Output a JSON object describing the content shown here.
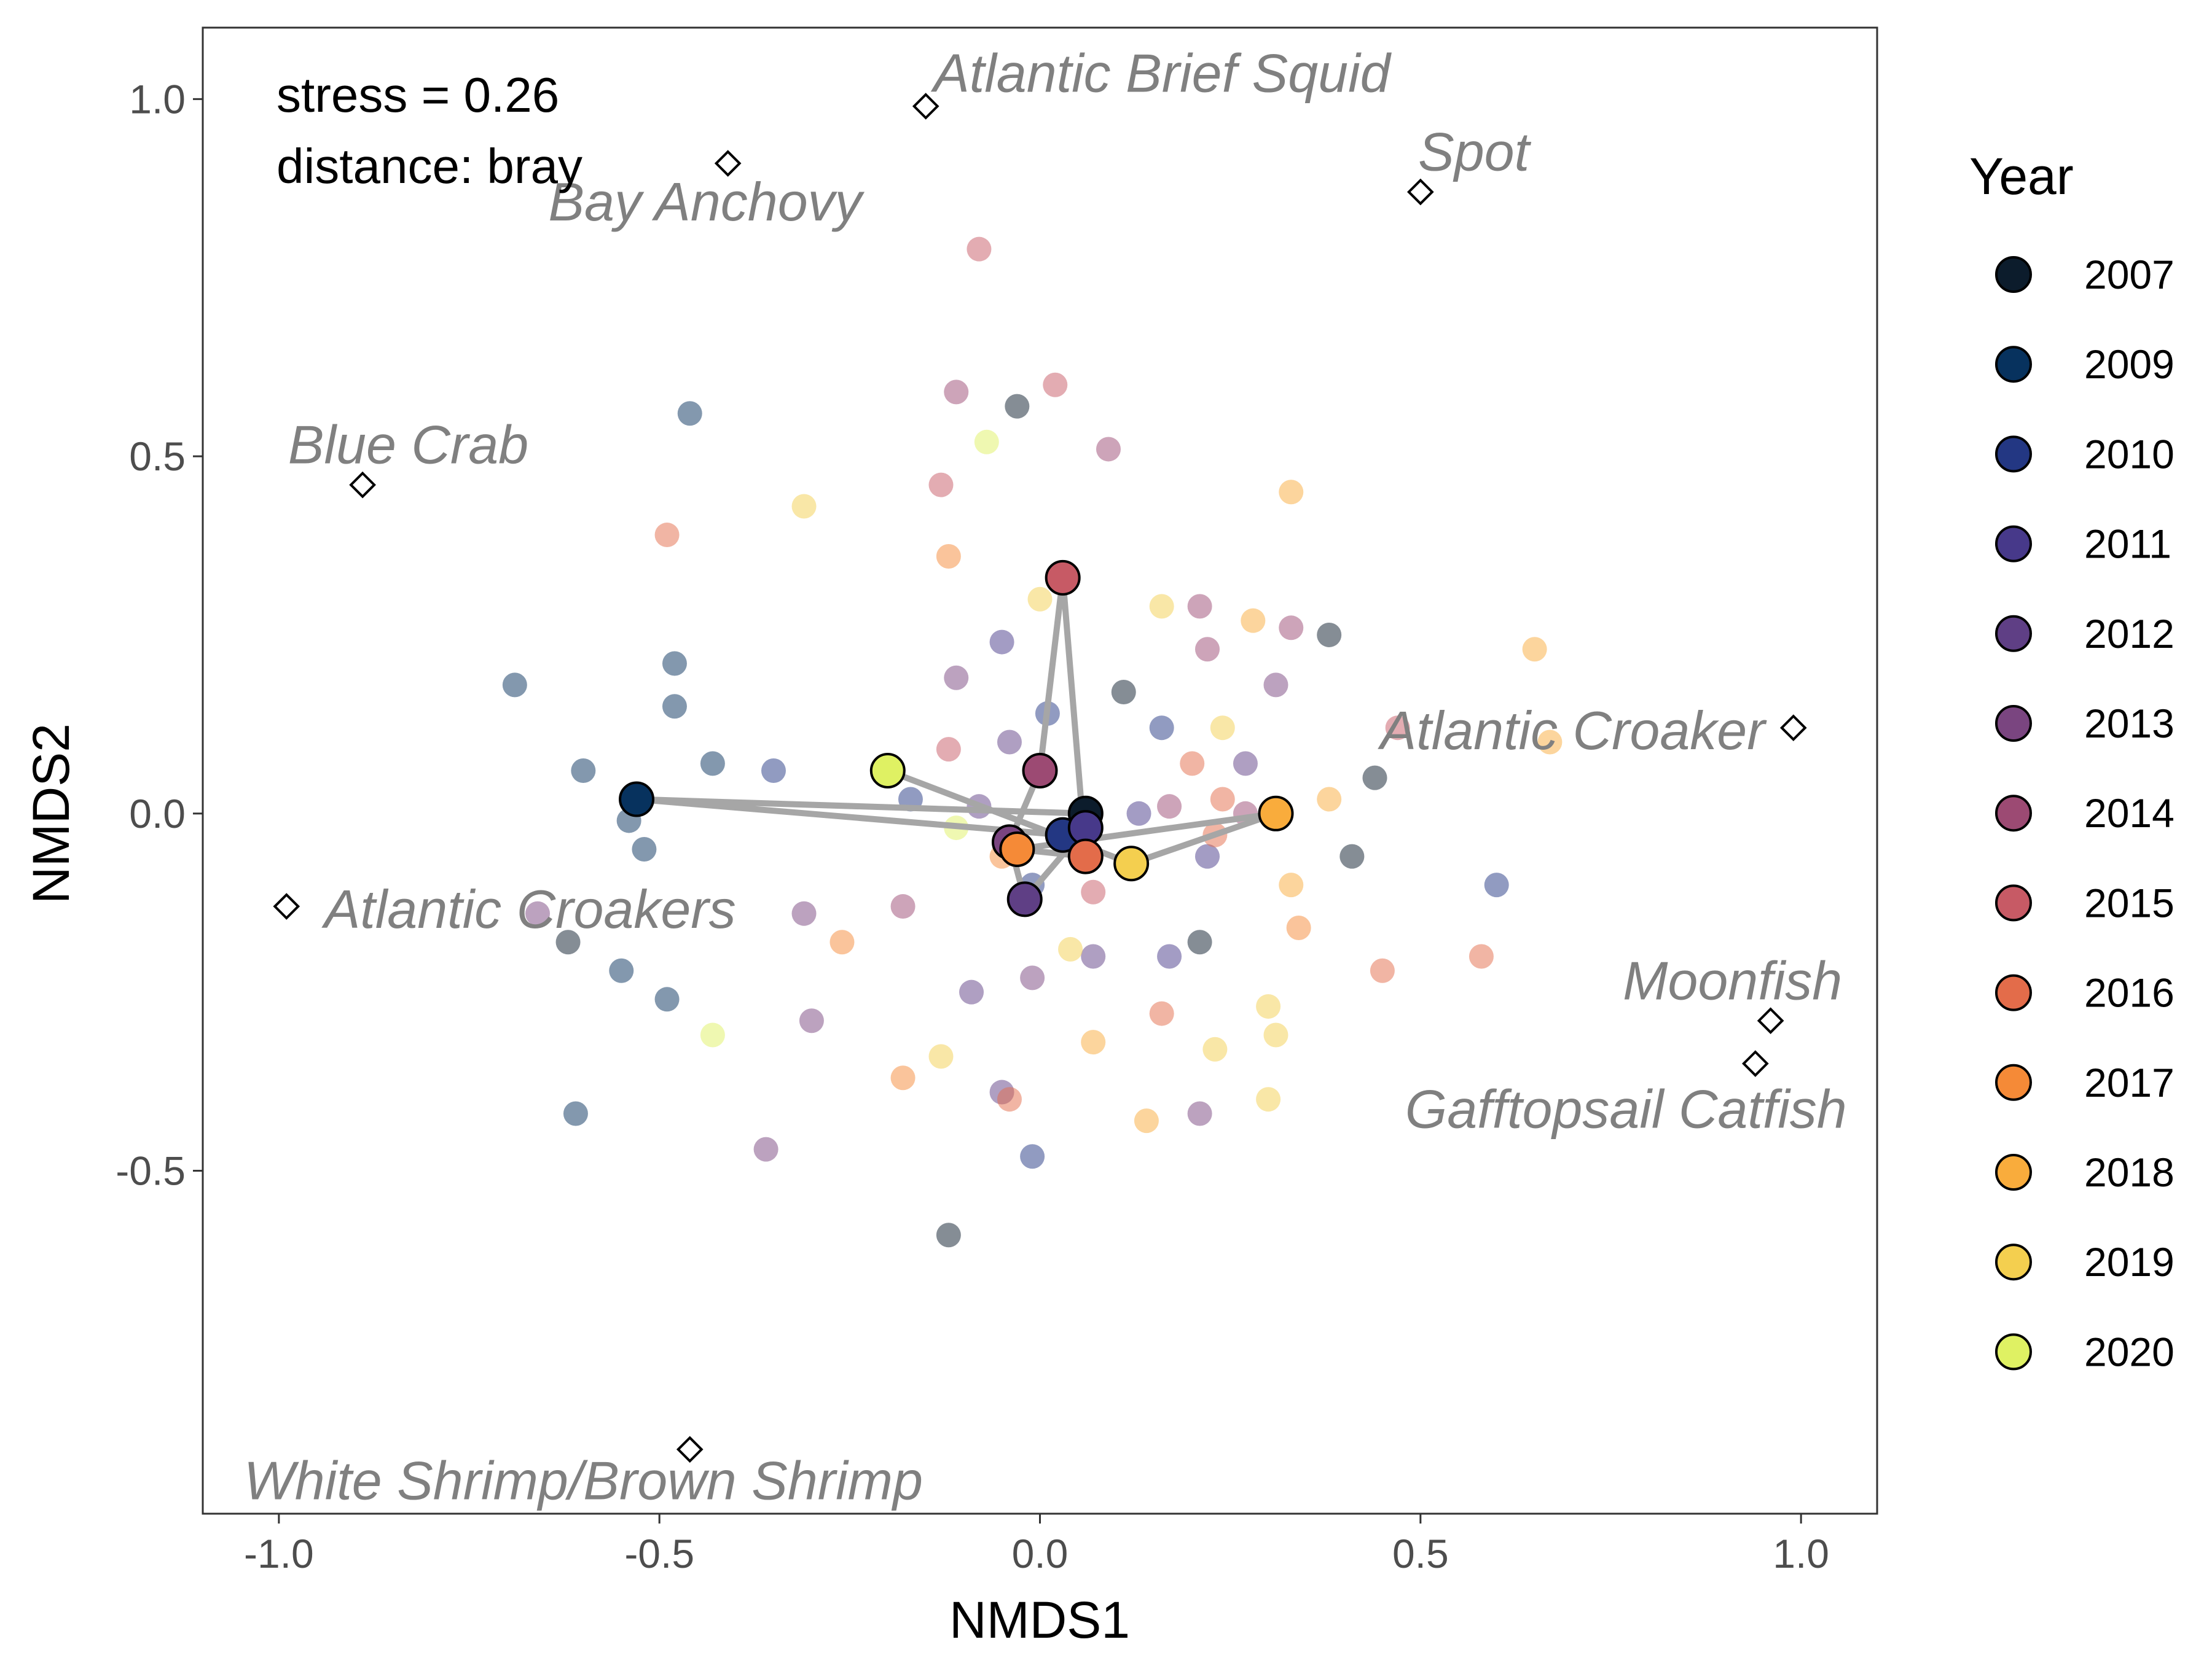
{
  "chart_data": {
    "type": "scatter",
    "xlabel": "NMDS1",
    "ylabel": "NMDS2",
    "xlim": [
      -1.1,
      1.1
    ],
    "ylim": [
      -0.98,
      1.1
    ],
    "x_ticks": [
      -1.0,
      -0.5,
      0.0,
      0.5,
      1.0
    ],
    "x_tick_labels": [
      "-1.0",
      "-0.5",
      "0.0",
      "0.5",
      "1.0"
    ],
    "y_ticks": [
      -0.5,
      0.0,
      0.5,
      1.0
    ],
    "y_tick_labels": [
      "-0.5",
      "0.0",
      "0.5",
      "1.0"
    ],
    "grid": false,
    "annotations": [
      "stress = 0.26",
      "distance: bray"
    ],
    "legend": {
      "title": "Year",
      "position": "right",
      "entries": [
        "2007",
        "2009",
        "2010",
        "2011",
        "2012",
        "2013",
        "2014",
        "2015",
        "2016",
        "2017",
        "2018",
        "2019",
        "2020"
      ]
    },
    "year_colors": {
      "2007": "#0c1c2c",
      "2009": "#07325e",
      "2010": "#233783",
      "2011": "#47398a",
      "2012": "#5f3f85",
      "2013": "#7a4580",
      "2014": "#9c4a73",
      "2015": "#c75a65",
      "2016": "#e36c4a",
      "2017": "#f58a37",
      "2018": "#f9ac3c",
      "2019": "#f4cf4f",
      "2020": "#dff163"
    },
    "sample_points": [
      {
        "year": "2007",
        "x": -0.03,
        "y": 0.57
      },
      {
        "year": "2007",
        "x": 0.11,
        "y": 0.17
      },
      {
        "year": "2007",
        "x": 0.38,
        "y": 0.25
      },
      {
        "year": "2007",
        "x": 0.44,
        "y": 0.05
      },
      {
        "year": "2007",
        "x": 0.41,
        "y": -0.06
      },
      {
        "year": "2007",
        "x": 0.21,
        "y": -0.18
      },
      {
        "year": "2007",
        "x": -0.12,
        "y": -0.59
      },
      {
        "year": "2007",
        "x": -0.62,
        "y": -0.18
      },
      {
        "year": "2009",
        "x": -0.46,
        "y": 0.56
      },
      {
        "year": "2009",
        "x": -0.69,
        "y": 0.18
      },
      {
        "year": "2009",
        "x": -0.48,
        "y": 0.21
      },
      {
        "year": "2009",
        "x": -0.48,
        "y": 0.15
      },
      {
        "year": "2009",
        "x": -0.6,
        "y": 0.06
      },
      {
        "year": "2009",
        "x": -0.43,
        "y": 0.07
      },
      {
        "year": "2009",
        "x": -0.54,
        "y": -0.01
      },
      {
        "year": "2009",
        "x": -0.52,
        "y": -0.05
      },
      {
        "year": "2009",
        "x": -0.55,
        "y": -0.22
      },
      {
        "year": "2009",
        "x": -0.49,
        "y": -0.26
      },
      {
        "year": "2009",
        "x": -0.61,
        "y": -0.42
      },
      {
        "year": "2010",
        "x": -0.35,
        "y": 0.06
      },
      {
        "year": "2010",
        "x": 0.01,
        "y": 0.14
      },
      {
        "year": "2010",
        "x": 0.16,
        "y": 0.12
      },
      {
        "year": "2010",
        "x": -0.17,
        "y": 0.02
      },
      {
        "year": "2010",
        "x": 0.6,
        "y": -0.1
      },
      {
        "year": "2010",
        "x": -0.01,
        "y": -0.48
      },
      {
        "year": "2010",
        "x": -0.01,
        "y": -0.1
      },
      {
        "year": "2011",
        "x": -0.05,
        "y": 0.24
      },
      {
        "year": "2011",
        "x": 0.22,
        "y": -0.06
      },
      {
        "year": "2011",
        "x": 0.17,
        "y": -0.2
      },
      {
        "year": "2011",
        "x": 0.13,
        "y": 0.0
      },
      {
        "year": "2012",
        "x": -0.08,
        "y": 0.01
      },
      {
        "year": "2012",
        "x": 0.27,
        "y": 0.07
      },
      {
        "year": "2012",
        "x": -0.09,
        "y": -0.25
      },
      {
        "year": "2012",
        "x": -0.04,
        "y": 0.1
      },
      {
        "year": "2012",
        "x": -0.05,
        "y": -0.39
      },
      {
        "year": "2012",
        "x": 0.07,
        "y": -0.2
      },
      {
        "year": "2013",
        "x": -0.11,
        "y": 0.19
      },
      {
        "year": "2013",
        "x": 0.31,
        "y": 0.18
      },
      {
        "year": "2013",
        "x": -0.31,
        "y": -0.14
      },
      {
        "year": "2013",
        "x": -0.66,
        "y": -0.14
      },
      {
        "year": "2013",
        "x": -0.3,
        "y": -0.29
      },
      {
        "year": "2013",
        "x": -0.36,
        "y": -0.47
      },
      {
        "year": "2013",
        "x": 0.21,
        "y": -0.42
      },
      {
        "year": "2013",
        "x": -0.01,
        "y": -0.23
      },
      {
        "year": "2014",
        "x": -0.11,
        "y": 0.59
      },
      {
        "year": "2014",
        "x": 0.09,
        "y": 0.51
      },
      {
        "year": "2014",
        "x": 0.21,
        "y": 0.29
      },
      {
        "year": "2014",
        "x": 0.22,
        "y": 0.23
      },
      {
        "year": "2014",
        "x": 0.33,
        "y": 0.26
      },
      {
        "year": "2014",
        "x": 0.17,
        "y": 0.01
      },
      {
        "year": "2014",
        "x": -0.18,
        "y": -0.13
      },
      {
        "year": "2014",
        "x": 0.27,
        "y": 0.0
      },
      {
        "year": "2015",
        "x": -0.08,
        "y": 0.79
      },
      {
        "year": "2015",
        "x": 0.02,
        "y": 0.6
      },
      {
        "year": "2015",
        "x": -0.13,
        "y": 0.46
      },
      {
        "year": "2015",
        "x": -0.12,
        "y": 0.09
      },
      {
        "year": "2015",
        "x": 0.07,
        "y": -0.11
      },
      {
        "year": "2015",
        "x": 0.47,
        "y": 0.12
      },
      {
        "year": "2016",
        "x": -0.49,
        "y": 0.39
      },
      {
        "year": "2016",
        "x": 0.2,
        "y": 0.07
      },
      {
        "year": "2016",
        "x": 0.24,
        "y": 0.02
      },
      {
        "year": "2016",
        "x": 0.23,
        "y": -0.03
      },
      {
        "year": "2016",
        "x": 0.45,
        "y": -0.22
      },
      {
        "year": "2016",
        "x": 0.58,
        "y": -0.2
      },
      {
        "year": "2016",
        "x": -0.04,
        "y": -0.4
      },
      {
        "year": "2016",
        "x": 0.16,
        "y": -0.28
      },
      {
        "year": "2017",
        "x": -0.12,
        "y": 0.36
      },
      {
        "year": "2017",
        "x": -0.26,
        "y": -0.18
      },
      {
        "year": "2017",
        "x": -0.18,
        "y": -0.37
      },
      {
        "year": "2017",
        "x": 0.34,
        "y": -0.16
      },
      {
        "year": "2017",
        "x": -0.05,
        "y": -0.06
      },
      {
        "year": "2018",
        "x": 0.33,
        "y": 0.45
      },
      {
        "year": "2018",
        "x": 0.28,
        "y": 0.27
      },
      {
        "year": "2018",
        "x": 0.65,
        "y": 0.23
      },
      {
        "year": "2018",
        "x": 0.67,
        "y": 0.1
      },
      {
        "year": "2018",
        "x": 0.38,
        "y": 0.02
      },
      {
        "year": "2018",
        "x": 0.33,
        "y": -0.1
      },
      {
        "year": "2018",
        "x": 0.07,
        "y": -0.32
      },
      {
        "year": "2018",
        "x": 0.14,
        "y": -0.43
      },
      {
        "year": "2019",
        "x": -0.31,
        "y": 0.43
      },
      {
        "year": "2019",
        "x": 0.0,
        "y": 0.3
      },
      {
        "year": "2019",
        "x": 0.16,
        "y": 0.29
      },
      {
        "year": "2019",
        "x": 0.24,
        "y": 0.12
      },
      {
        "year": "2019",
        "x": 0.04,
        "y": -0.19
      },
      {
        "year": "2019",
        "x": -0.13,
        "y": -0.34
      },
      {
        "year": "2019",
        "x": 0.23,
        "y": -0.33
      },
      {
        "year": "2019",
        "x": 0.3,
        "y": -0.27
      },
      {
        "year": "2019",
        "x": 0.31,
        "y": -0.31
      },
      {
        "year": "2019",
        "x": 0.3,
        "y": -0.4
      },
      {
        "year": "2020",
        "x": -0.07,
        "y": 0.52
      },
      {
        "year": "2020",
        "x": -0.11,
        "y": -0.02
      },
      {
        "year": "2020",
        "x": -0.43,
        "y": -0.31
      }
    ],
    "centroids": [
      {
        "year": "2007",
        "x": 0.06,
        "y": 0.0
      },
      {
        "year": "2009",
        "x": -0.53,
        "y": 0.02
      },
      {
        "year": "2010",
        "x": 0.03,
        "y": -0.03
      },
      {
        "year": "2011",
        "x": 0.06,
        "y": -0.02
      },
      {
        "year": "2012",
        "x": -0.02,
        "y": -0.12
      },
      {
        "year": "2013",
        "x": -0.04,
        "y": -0.04
      },
      {
        "year": "2014",
        "x": 0.0,
        "y": 0.06
      },
      {
        "year": "2015",
        "x": 0.03,
        "y": 0.33
      },
      {
        "year": "2016",
        "x": 0.06,
        "y": -0.06
      },
      {
        "year": "2017",
        "x": -0.03,
        "y": -0.05
      },
      {
        "year": "2018",
        "x": 0.31,
        "y": 0.0
      },
      {
        "year": "2019",
        "x": 0.12,
        "y": -0.07
      },
      {
        "year": "2020",
        "x": -0.2,
        "y": 0.06
      }
    ],
    "trajectory_order": [
      "2007",
      "2009",
      "2010",
      "2011",
      "2012",
      "2013",
      "2014",
      "2015",
      "2016",
      "2017",
      "2018",
      "2019",
      "2020"
    ],
    "species": [
      {
        "name": "Atlantic Brief Squid",
        "x": -0.15,
        "y": 0.99,
        "label_dx": 0.01,
        "label_dy": 0.04,
        "anchor": "start"
      },
      {
        "name": "Bay Anchovy",
        "x": -0.41,
        "y": 0.91,
        "label_dx": -0.03,
        "label_dy": -0.06,
        "anchor": "middle"
      },
      {
        "name": "Spot",
        "x": 0.5,
        "y": 0.87,
        "label_dx": 0.07,
        "label_dy": 0.05,
        "anchor": "middle"
      },
      {
        "name": "Blue Crab",
        "x": -0.89,
        "y": 0.46,
        "label_dx": 0.06,
        "label_dy": 0.05,
        "anchor": "middle"
      },
      {
        "name": "Atlantic Croaker",
        "x": 0.99,
        "y": 0.12,
        "label_dx": -0.29,
        "label_dy": -0.01,
        "anchor": "middle"
      },
      {
        "name": "Atlantic Croakers",
        "x": -0.99,
        "y": -0.13,
        "label_dx": 0.32,
        "label_dy": -0.01,
        "anchor": "middle"
      },
      {
        "name": "Moonfish",
        "x": 0.96,
        "y": -0.29,
        "label_dx": -0.05,
        "label_dy": 0.05,
        "anchor": "middle"
      },
      {
        "name": "Gafftopsail Catfish",
        "x": 0.94,
        "y": -0.35,
        "label_dx": -0.17,
        "label_dy": -0.07,
        "anchor": "middle"
      },
      {
        "name": "White Shrimp/Brown Shrimp",
        "x": -0.46,
        "y": -0.89,
        "label_dx": -0.14,
        "label_dy": -0.05,
        "anchor": "middle"
      }
    ]
  }
}
